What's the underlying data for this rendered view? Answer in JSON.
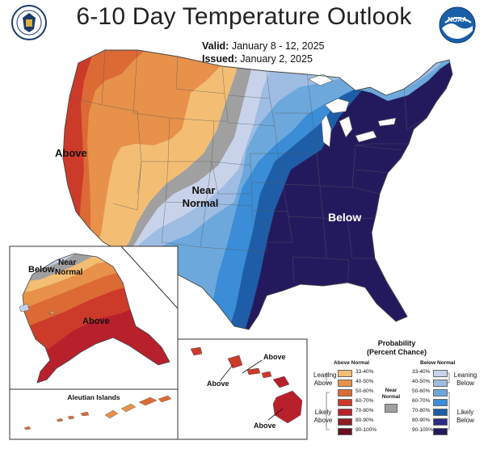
{
  "title": "6-10 Day Temperature Outlook",
  "valid_label": "Valid:",
  "valid_value": "January 8 - 12, 2025",
  "issued_label": "Issued:",
  "issued_value": "January 2, 2025",
  "logos": {
    "left": "commerce-seal-icon",
    "right": "noaa-logo-icon",
    "right_text": "NOAA"
  },
  "map_labels": {
    "conus_above": "Above",
    "conus_near_1": "Near",
    "conus_near_2": "Normal",
    "conus_below": "Below",
    "alaska_below": "Below",
    "alaska_near_1": "Near",
    "alaska_near_2": "Normal",
    "alaska_above": "Above",
    "aleutian_title": "Aleutian Islands",
    "hawaii_above_1": "Above",
    "hawaii_above_2": "Above",
    "hawaii_above_3": "Above"
  },
  "legend": {
    "title_1": "Probability",
    "title_2": "(Percent Chance)",
    "above_header": "Above Normal",
    "below_header": "Below Normal",
    "near_1": "Near",
    "near_2": "Normal",
    "leaning_above_1": "Leaning",
    "leaning_above_2": "Above",
    "likely_above_1": "Likely",
    "likely_above_2": "Above",
    "leaning_below_1": "Leaning",
    "leaning_below_2": "Below",
    "likely_below_1": "Likely",
    "likely_below_2": "Below",
    "above_ranges": [
      "33-40%",
      "40-50%",
      "50-60%",
      "60-70%",
      "70-80%",
      "80-90%",
      "90-100%"
    ],
    "below_ranges": [
      "33-40%",
      "40-50%",
      "50-60%",
      "60-70%",
      "70-80%",
      "80-90%",
      "90-100%"
    ],
    "above_colors": [
      "#f3be74",
      "#e7914b",
      "#dc6a35",
      "#cc3a2a",
      "#b8202c",
      "#8e1c26",
      "#6b1020"
    ],
    "below_colors": [
      "#c8d3ea",
      "#9fbde3",
      "#6ca8dc",
      "#3a8dd6",
      "#1e5ea8",
      "#2c2c86",
      "#231a5e"
    ],
    "near_color": "#a0a0a0"
  },
  "colors": {
    "above_33": "#f3be74",
    "above_40": "#e7914b",
    "above_50": "#dc6a35",
    "above_60": "#cc3a2a",
    "near": "#a0a0a0",
    "below_33": "#c8d3ea",
    "below_40": "#9fbde3",
    "below_50": "#6ca8dc",
    "below_60": "#3a8dd6",
    "below_70": "#1e5ea8",
    "below_80": "#2c2c86",
    "below_90": "#231a5e"
  }
}
